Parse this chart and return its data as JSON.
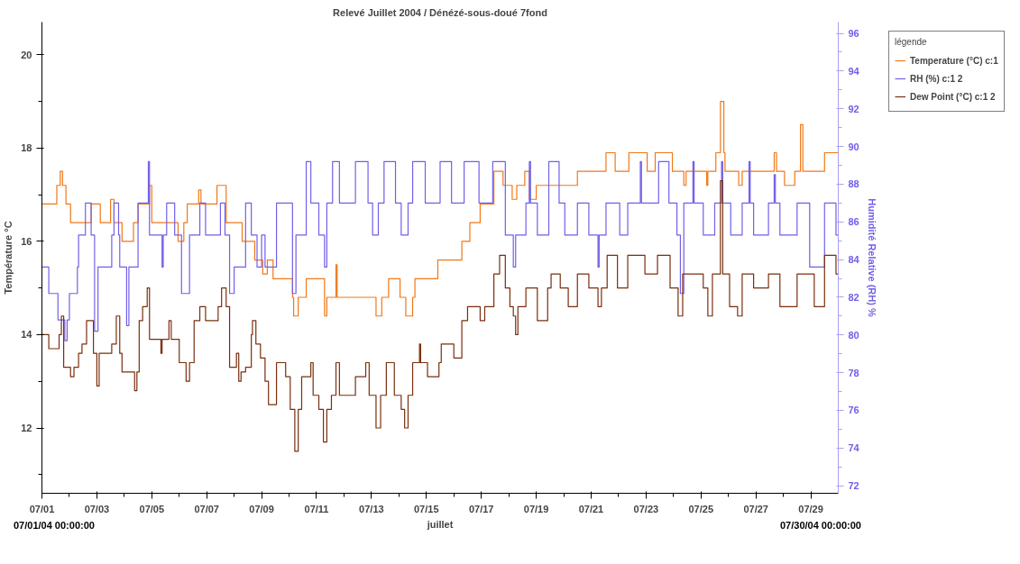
{
  "chart_data": {
    "type": "step",
    "title": "Relevé Juillet 2004 / Dénézé-sous-doué 7fond",
    "xlabel": "juillet",
    "ylabel": "Température °C",
    "y2label": "Humidité Relative (RH) %",
    "legend_title": "légende",
    "legend": "right",
    "annotations": [
      "07/01/04 00:00:00",
      "07/30/04 00:00:00"
    ],
    "xlim": [
      "2004-07-01T00:00",
      "2004-07-30T00:00"
    ],
    "ylim": [
      10.6,
      20.7
    ],
    "y2lim": [
      71.6,
      96.6
    ],
    "xticks": [
      {
        "value": "2004-07-01T00:00",
        "label": "07/01"
      },
      {
        "value": "2004-07-02T00:00",
        "label": null
      },
      {
        "value": "2004-07-03T00:00",
        "label": "07/03"
      },
      {
        "value": "2004-07-04T00:00",
        "label": null
      },
      {
        "value": "2004-07-05T00:00",
        "label": "07/05"
      },
      {
        "value": "2004-07-06T00:00",
        "label": null
      },
      {
        "value": "2004-07-07T00:00",
        "label": "07/07"
      },
      {
        "value": "2004-07-08T00:00",
        "label": null
      },
      {
        "value": "2004-07-09T00:00",
        "label": "07/09"
      },
      {
        "value": "2004-07-10T00:00",
        "label": null
      },
      {
        "value": "2004-07-11T00:00",
        "label": "07/11"
      },
      {
        "value": "2004-07-12T00:00",
        "label": null
      },
      {
        "value": "2004-07-13T00:00",
        "label": "07/13"
      },
      {
        "value": "2004-07-14T00:00",
        "label": null
      },
      {
        "value": "2004-07-15T00:00",
        "label": "07/15"
      },
      {
        "value": "2004-07-16T00:00",
        "label": null
      },
      {
        "value": "2004-07-17T00:00",
        "label": "07/17"
      },
      {
        "value": "2004-07-18T00:00",
        "label": null
      },
      {
        "value": "2004-07-19T00:00",
        "label": "07/19"
      },
      {
        "value": "2004-07-20T00:00",
        "label": null
      },
      {
        "value": "2004-07-21T00:00",
        "label": "07/21"
      },
      {
        "value": "2004-07-22T00:00",
        "label": null
      },
      {
        "value": "2004-07-23T00:00",
        "label": "07/23"
      },
      {
        "value": "2004-07-24T00:00",
        "label": null
      },
      {
        "value": "2004-07-25T00:00",
        "label": "07/25"
      },
      {
        "value": "2004-07-26T00:00",
        "label": null
      },
      {
        "value": "2004-07-27T00:00",
        "label": "07/27"
      },
      {
        "value": "2004-07-28T00:00",
        "label": null
      },
      {
        "value": "2004-07-29T00:00",
        "label": "07/29"
      }
    ],
    "yticks": [
      {
        "value": 11,
        "label": null
      },
      12,
      {
        "value": 13,
        "label": null
      },
      14,
      {
        "value": 15,
        "label": null
      },
      16,
      {
        "value": 17,
        "label": null
      },
      18,
      {
        "value": 19,
        "label": null
      },
      20
    ],
    "y2ticks": [
      72,
      {
        "value": 73,
        "label": null
      },
      74,
      {
        "value": 75,
        "label": null
      },
      76,
      {
        "value": 77,
        "label": null
      },
      78,
      {
        "value": 79,
        "label": null
      },
      80,
      {
        "value": 81,
        "label": null
      },
      82,
      {
        "value": 83,
        "label": null
      },
      84,
      {
        "value": 85,
        "label": null
      },
      86,
      {
        "value": 87,
        "label": null
      },
      88,
      {
        "value": 89,
        "label": null
      },
      90,
      {
        "value": 91,
        "label": null
      },
      92,
      {
        "value": 93,
        "label": null
      },
      94,
      {
        "value": 95,
        "label": null
      },
      96
    ],
    "series": [
      {
        "name": "Temperature (°C) c:1",
        "color": "#f07818",
        "x": [
          "2004-07-01T00:00",
          "2004-07-01T13:00",
          "2004-07-01T16:00",
          "2004-07-01T18:00",
          "2004-07-01T21:00",
          "2004-07-02T01:00",
          "2004-07-02T19:00",
          "2004-07-03T03:00",
          "2004-07-03T12:00",
          "2004-07-03T15:00",
          "2004-07-03T22:00",
          "2004-07-04T08:00",
          "2004-07-04T12:00",
          "2004-07-04T22:00",
          "2004-07-05T00:00",
          "2004-07-05T23:00",
          "2004-07-06T04:00",
          "2004-07-06T07:00",
          "2004-07-06T17:00",
          "2004-07-06T19:00",
          "2004-07-07T09:00",
          "2004-07-07T17:00",
          "2004-07-08T07:00",
          "2004-07-08T18:00",
          "2004-07-09T01:00",
          "2004-07-09T05:00",
          "2004-07-09T10:00",
          "2004-07-10T03:00",
          "2004-07-10T04:00",
          "2004-07-10T08:00",
          "2004-07-10T15:00",
          "2004-07-11T07:00",
          "2004-07-11T09:00",
          "2004-07-11T17:00",
          "2004-07-11T18:00",
          "2004-07-13T04:00",
          "2004-07-13T09:00",
          "2004-07-13T15:00",
          "2004-07-14T01:00",
          "2004-07-14T06:00",
          "2004-07-14T12:00",
          "2004-07-14T14:00",
          "2004-07-15T10:00",
          "2004-07-16T07:00",
          "2004-07-16T14:00",
          "2004-07-16T23:00",
          "2004-07-17T11:00",
          "2004-07-17T19:00",
          "2004-07-18T03:00",
          "2004-07-18T07:00",
          "2004-07-18T14:00",
          "2004-07-18T18:00",
          "2004-07-19T00:00",
          "2004-07-20T12:00",
          "2004-07-21T13:00",
          "2004-07-21T21:00",
          "2004-07-22T09:00",
          "2004-07-23T01:00",
          "2004-07-23T08:00",
          "2004-07-23T23:00",
          "2004-07-24T09:00",
          "2004-07-24T11:00",
          "2004-07-25T05:00",
          "2004-07-25T06:00",
          "2004-07-25T13:00",
          "2004-07-25T17:00",
          "2004-07-25T20:00",
          "2004-07-25T21:00",
          "2004-07-26T09:00",
          "2004-07-26T12:00",
          "2004-07-27T16:00",
          "2004-07-27T18:00",
          "2004-07-28T01:00",
          "2004-07-28T10:00",
          "2004-07-28T15:00",
          "2004-07-28T17:00",
          "2004-07-29T12:00",
          "2004-07-30T00:00"
        ],
        "values": [
          16.8,
          17.2,
          17.5,
          17.2,
          16.8,
          16.4,
          16.8,
          16.4,
          16.9,
          16.4,
          16.0,
          16.4,
          16.8,
          17.2,
          16.4,
          16.0,
          16.4,
          16.8,
          17.1,
          16.8,
          17.2,
          16.4,
          16.0,
          15.6,
          15.3,
          15.6,
          15.2,
          14.8,
          14.4,
          14.8,
          15.2,
          14.4,
          14.8,
          15.5,
          14.8,
          14.4,
          14.8,
          15.2,
          14.8,
          14.4,
          14.8,
          15.2,
          15.6,
          16.0,
          16.4,
          16.8,
          17.5,
          17.2,
          16.9,
          17.2,
          17.5,
          16.9,
          17.2,
          17.5,
          17.9,
          17.5,
          17.9,
          17.5,
          17.9,
          17.5,
          17.2,
          17.5,
          17.2,
          17.5,
          17.9,
          19.0,
          17.9,
          17.5,
          17.2,
          17.5,
          17.9,
          17.5,
          17.2,
          17.5,
          18.5,
          17.5,
          17.9,
          17.9
        ]
      },
      {
        "name": "RH (%) c:1 2",
        "color": "#7060e8",
        "axis": "y2",
        "x": [
          "2004-07-01T00:00",
          "2004-07-01T06:00",
          "2004-07-01T14:00",
          "2004-07-01T20:00",
          "2004-07-01T22:00",
          "2004-07-02T00:00",
          "2004-07-02T07:00",
          "2004-07-02T08:00",
          "2004-07-02T14:00",
          "2004-07-02T19:00",
          "2004-07-02T22:00",
          "2004-07-03T01:00",
          "2004-07-03T13:00",
          "2004-07-03T15:00",
          "2004-07-03T19:00",
          "2004-07-03T20:00",
          "2004-07-04T02:00",
          "2004-07-04T04:00",
          "2004-07-04T12:00",
          "2004-07-04T21:00",
          "2004-07-04T22:00",
          "2004-07-05T09:00",
          "2004-07-05T10:00",
          "2004-07-05T13:00",
          "2004-07-05T20:00",
          "2004-07-06T02:00",
          "2004-07-06T09:00",
          "2004-07-06T18:00",
          "2004-07-06T23:00",
          "2004-07-07T12:00",
          "2004-07-07T16:00",
          "2004-07-07T20:00",
          "2004-07-08T00:00",
          "2004-07-08T10:00",
          "2004-07-08T15:00",
          "2004-07-08T20:00",
          "2004-07-09T00:00",
          "2004-07-09T03:00",
          "2004-07-09T13:00",
          "2004-07-10T03:00",
          "2004-07-10T06:00",
          "2004-07-10T15:00",
          "2004-07-10T19:00",
          "2004-07-11T02:00",
          "2004-07-11T07:00",
          "2004-07-11T09:00",
          "2004-07-11T14:00",
          "2004-07-11T20:00",
          "2004-07-12T10:00",
          "2004-07-12T21:00",
          "2004-07-13T01:00",
          "2004-07-13T06:00",
          "2004-07-13T11:00",
          "2004-07-13T21:00",
          "2004-07-14T02:00",
          "2004-07-14T08:00",
          "2004-07-14T12:00",
          "2004-07-14T23:00",
          "2004-07-15T12:00",
          "2004-07-15T22:00",
          "2004-07-16T09:00",
          "2004-07-16T22:00",
          "2004-07-17T10:00",
          "2004-07-17T21:00",
          "2004-07-18T04:00",
          "2004-07-18T06:00",
          "2004-07-18T15:00",
          "2004-07-18T18:00",
          "2004-07-18T19:00",
          "2004-07-19T01:00",
          "2004-07-19T11:00",
          "2004-07-19T20:00",
          "2004-07-20T01:00",
          "2004-07-20T12:00",
          "2004-07-20T22:00",
          "2004-07-21T06:00",
          "2004-07-21T07:00",
          "2004-07-21T13:00",
          "2004-07-22T01:00",
          "2004-07-22T08:00",
          "2004-07-22T19:00",
          "2004-07-22T20:00",
          "2004-07-23T11:00",
          "2004-07-23T20:00",
          "2004-07-24T03:00",
          "2004-07-24T06:00",
          "2004-07-24T09:00",
          "2004-07-24T17:00",
          "2004-07-24T18:00",
          "2004-07-25T02:00",
          "2004-07-25T12:00",
          "2004-07-25T18:00",
          "2004-07-25T19:00",
          "2004-07-26T02:00",
          "2004-07-26T12:00",
          "2004-07-26T18:00",
          "2004-07-26T19:00",
          "2004-07-26T22:00",
          "2004-07-27T11:00",
          "2004-07-27T16:00",
          "2004-07-27T17:00",
          "2004-07-27T21:00",
          "2004-07-28T12:00",
          "2004-07-28T23:00",
          "2004-07-29T12:00",
          "2004-07-29T22:00",
          "2004-07-30T00:00"
        ],
        "values": [
          83.6,
          82.2,
          80.8,
          79.7,
          80.8,
          82.2,
          83.6,
          85.3,
          87.0,
          85.3,
          80.2,
          83.6,
          85.3,
          87.0,
          85.3,
          83.6,
          80.5,
          83.6,
          87.0,
          89.2,
          85.3,
          83.6,
          85.3,
          87.0,
          85.3,
          82.2,
          85.3,
          87.0,
          85.3,
          87.0,
          85.3,
          82.2,
          83.6,
          87.0,
          85.3,
          83.6,
          85.3,
          83.6,
          87.0,
          82.2,
          85.3,
          89.2,
          87.0,
          85.3,
          83.6,
          87.0,
          89.2,
          87.0,
          89.2,
          87.0,
          85.3,
          87.0,
          89.2,
          87.0,
          85.3,
          87.0,
          89.2,
          87.0,
          89.2,
          87.0,
          89.2,
          87.0,
          89.2,
          85.3,
          83.6,
          85.3,
          87.0,
          89.2,
          87.0,
          85.3,
          89.2,
          87.0,
          85.3,
          87.0,
          85.3,
          83.6,
          85.3,
          87.0,
          85.3,
          87.0,
          89.2,
          87.0,
          89.2,
          87.0,
          85.3,
          82.2,
          87.0,
          89.2,
          87.0,
          85.3,
          87.0,
          89.2,
          87.0,
          85.3,
          87.0,
          89.2,
          87.0,
          85.3,
          87.0,
          88.5,
          87.0,
          85.3,
          87.0,
          83.6,
          87.0,
          85.3,
          85.3
        ]
      },
      {
        "name": "Dew Point (°C) c:1 2",
        "color": "#7a2e0e",
        "x": [
          "2004-07-01T00:00",
          "2004-07-01T06:00",
          "2004-07-01T15:00",
          "2004-07-01T17:00",
          "2004-07-01T19:00",
          "2004-07-02T01:00",
          "2004-07-02T04:00",
          "2004-07-02T08:00",
          "2004-07-02T11:00",
          "2004-07-02T15:00",
          "2004-07-02T21:00",
          "2004-07-03T00:00",
          "2004-07-03T02:00",
          "2004-07-03T13:00",
          "2004-07-03T17:00",
          "2004-07-03T20:00",
          "2004-07-03T22:00",
          "2004-07-04T09:00",
          "2004-07-04T11:00",
          "2004-07-04T13:00",
          "2004-07-04T16:00",
          "2004-07-04T20:00",
          "2004-07-04T22:00",
          "2004-07-05T08:00",
          "2004-07-05T09:00",
          "2004-07-05T15:00",
          "2004-07-05T17:00",
          "2004-07-06T00:00",
          "2004-07-06T06:00",
          "2004-07-06T09:00",
          "2004-07-06T13:00",
          "2004-07-06T18:00",
          "2004-07-06T23:00",
          "2004-07-07T10:00",
          "2004-07-07T13:00",
          "2004-07-07T17:00",
          "2004-07-07T20:00",
          "2004-07-08T02:00",
          "2004-07-08T04:00",
          "2004-07-08T06:00",
          "2004-07-08T10:00",
          "2004-07-08T15:00",
          "2004-07-08T16:00",
          "2004-07-08T19:00",
          "2004-07-08T23:00",
          "2004-07-09T03:00",
          "2004-07-09T06:00",
          "2004-07-09T13:00",
          "2004-07-09T21:00",
          "2004-07-10T01:00",
          "2004-07-10T05:00",
          "2004-07-10T08:00",
          "2004-07-10T11:00",
          "2004-07-10T19:00",
          "2004-07-10T21:00",
          "2004-07-11T02:00",
          "2004-07-11T06:00",
          "2004-07-11T09:00",
          "2004-07-11T13:00",
          "2004-07-11T17:00",
          "2004-07-11T20:00",
          "2004-07-12T10:00",
          "2004-07-12T19:00",
          "2004-07-12T22:00",
          "2004-07-13T04:00",
          "2004-07-13T08:00",
          "2004-07-13T13:00",
          "2004-07-13T20:00",
          "2004-07-14T02:00",
          "2004-07-14T05:00",
          "2004-07-14T08:00",
          "2004-07-14T12:00",
          "2004-07-14T18:00",
          "2004-07-14T19:00",
          "2004-07-15T01:00",
          "2004-07-15T11:00",
          "2004-07-15T13:00",
          "2004-07-16T00:00",
          "2004-07-16T07:00",
          "2004-07-16T12:00",
          "2004-07-16T23:00",
          "2004-07-17T03:00",
          "2004-07-17T11:00",
          "2004-07-17T16:00",
          "2004-07-17T21:00",
          "2004-07-18T01:00",
          "2004-07-18T04:00",
          "2004-07-18T06:00",
          "2004-07-18T08:00",
          "2004-07-18T15:00",
          "2004-07-19T01:00",
          "2004-07-19T10:00",
          "2004-07-19T13:00",
          "2004-07-19T21:00",
          "2004-07-20T04:00",
          "2004-07-20T12:00",
          "2004-07-20T22:00",
          "2004-07-21T06:00",
          "2004-07-21T09:00",
          "2004-07-21T14:00",
          "2004-07-21T23:00",
          "2004-07-22T08:00",
          "2004-07-22T23:00",
          "2004-07-23T10:00",
          "2004-07-23T21:00",
          "2004-07-24T04:00",
          "2004-07-24T08:00",
          "2004-07-25T02:00",
          "2004-07-25T06:00",
          "2004-07-25T10:00",
          "2004-07-25T17:00",
          "2004-07-25T19:00",
          "2004-07-26T01:00",
          "2004-07-26T08:00",
          "2004-07-26T12:00",
          "2004-07-26T22:00",
          "2004-07-27T11:00",
          "2004-07-27T21:00",
          "2004-07-28T12:00",
          "2004-07-29T03:00",
          "2004-07-29T12:00",
          "2004-07-29T22:00",
          "2004-07-30T00:00"
        ],
        "values": [
          14.0,
          13.7,
          14.0,
          14.4,
          13.3,
          13.1,
          13.3,
          13.6,
          13.8,
          14.3,
          13.6,
          12.9,
          13.6,
          13.8,
          14.4,
          13.6,
          13.2,
          12.8,
          13.2,
          14.3,
          14.6,
          15.0,
          13.9,
          13.6,
          13.9,
          14.3,
          13.9,
          13.4,
          13.0,
          13.4,
          14.3,
          14.6,
          14.3,
          14.6,
          15.0,
          14.6,
          13.3,
          13.6,
          13.0,
          13.2,
          13.3,
          14.0,
          14.3,
          13.8,
          13.5,
          13.0,
          12.5,
          13.4,
          13.1,
          12.4,
          11.5,
          12.4,
          13.1,
          13.4,
          12.7,
          12.4,
          11.7,
          12.4,
          12.7,
          13.4,
          12.7,
          13.1,
          13.4,
          12.7,
          12.0,
          12.7,
          13.4,
          12.7,
          12.4,
          12.0,
          12.7,
          13.4,
          13.8,
          13.4,
          13.1,
          13.4,
          13.8,
          13.5,
          14.3,
          14.6,
          14.3,
          14.6,
          15.3,
          15.7,
          15.0,
          14.6,
          14.4,
          14.0,
          14.6,
          15.0,
          14.3,
          15.0,
          15.3,
          15.0,
          14.6,
          15.3,
          15.0,
          14.6,
          15.0,
          15.7,
          15.0,
          15.7,
          15.3,
          15.7,
          15.0,
          14.4,
          15.3,
          15.0,
          14.4,
          15.3,
          17.3,
          15.3,
          14.6,
          14.4,
          15.3,
          15.0,
          15.3,
          14.6,
          15.3,
          14.6,
          15.7,
          15.3,
          15.3
        ]
      }
    ]
  }
}
